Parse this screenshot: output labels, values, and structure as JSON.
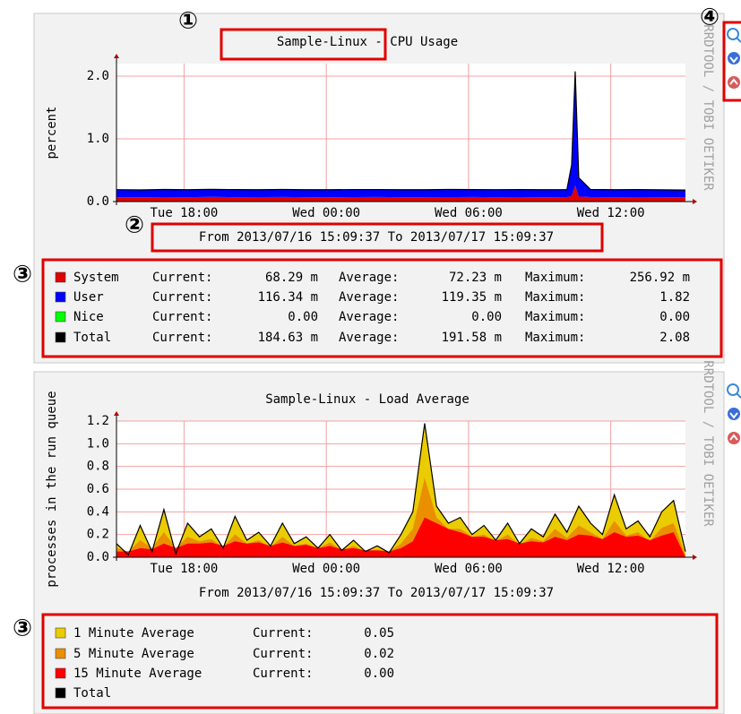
{
  "markers": [
    "①",
    "②",
    "③",
    "③",
    "④"
  ],
  "chart_data": [
    {
      "type": "area",
      "stacked": true,
      "title": "Sample-Linux - CPU Usage",
      "subtitle": "From 2013/07/16 15:09:37 To 2013/07/17 15:09:37",
      "y_label": "percent",
      "watermark": "RRDTOOL / TOBI OETIKER",
      "x": [
        0,
        1,
        2,
        3,
        4,
        5,
        6,
        7,
        8,
        9,
        10,
        11,
        12,
        13,
        14,
        15,
        16,
        17,
        18,
        19,
        19.2,
        19.35,
        19.5,
        20,
        21,
        22,
        23,
        24
      ],
      "xlim": [
        0,
        24
      ],
      "xticks": [
        {
          "value": 2.85,
          "label": "Tue 18:00"
        },
        {
          "value": 8.85,
          "label": "Wed 00:00"
        },
        {
          "value": 14.85,
          "label": "Wed 06:00"
        },
        {
          "value": 20.85,
          "label": "Wed 12:00"
        }
      ],
      "ylim": [
        0,
        2.2
      ],
      "yticks": [
        {
          "value": 0,
          "label": "0.0"
        },
        {
          "value": 1,
          "label": "1.0"
        },
        {
          "value": 2,
          "label": "2.0"
        }
      ],
      "grid": true,
      "stat_labels": [
        "Current:",
        "Average:",
        "Maximum:"
      ],
      "series": [
        {
          "name": "System",
          "color": "#e00000",
          "stats": [
            "68.29 m",
            "72.23 m",
            "256.92 m"
          ],
          "values": [
            0.07,
            0.068,
            0.072,
            0.07,
            0.075,
            0.069,
            0.071,
            0.073,
            0.07,
            0.068,
            0.072,
            0.074,
            0.07,
            0.069,
            0.071,
            0.073,
            0.07,
            0.072,
            0.068,
            0.071,
            0.09,
            0.257,
            0.08,
            0.072,
            0.07,
            0.071,
            0.069,
            0.068
          ]
        },
        {
          "name": "User",
          "color": "#0000ff",
          "stats": [
            "116.34 m",
            "119.35 m",
            "1.82"
          ],
          "values": [
            0.12,
            0.118,
            0.121,
            0.119,
            0.12,
            0.122,
            0.118,
            0.12,
            0.119,
            0.121,
            0.12,
            0.118,
            0.119,
            0.12,
            0.122,
            0.118,
            0.12,
            0.119,
            0.121,
            0.12,
            0.5,
            1.82,
            0.3,
            0.121,
            0.119,
            0.12,
            0.118,
            0.116
          ]
        },
        {
          "name": "Nice",
          "color": "#00ff00",
          "stats": [
            "0.00",
            "0.00",
            "0.00"
          ],
          "values": [
            0,
            0,
            0,
            0,
            0,
            0,
            0,
            0,
            0,
            0,
            0,
            0,
            0,
            0,
            0,
            0,
            0,
            0,
            0,
            0,
            0,
            0,
            0,
            0,
            0,
            0,
            0,
            0
          ]
        }
      ],
      "total": {
        "name": "Total",
        "color": "#000000",
        "stats": [
          "184.63 m",
          "191.58 m",
          "2.08"
        ]
      }
    },
    {
      "type": "area",
      "stacked": false,
      "title": "Sample-Linux - Load Average",
      "subtitle": "From 2013/07/16 15:09:37 To 2013/07/17 15:09:37",
      "y_label": "processes in the run queue",
      "watermark": "RRDTOOL / TOBI OETIKER",
      "x": [
        0,
        0.5,
        1,
        1.5,
        2,
        2.5,
        3,
        3.5,
        4,
        4.5,
        5,
        5.5,
        6,
        6.5,
        7,
        7.5,
        8,
        8.5,
        9,
        9.5,
        10,
        10.5,
        11,
        11.5,
        12,
        12.5,
        13,
        13.5,
        14,
        14.5,
        15,
        15.5,
        16,
        16.5,
        17,
        17.5,
        18,
        18.5,
        19,
        19.5,
        20,
        20.5,
        21,
        21.5,
        22,
        22.5,
        23,
        23.5,
        24
      ],
      "xlim": [
        0,
        24
      ],
      "xticks": [
        {
          "value": 2.85,
          "label": "Tue 18:00"
        },
        {
          "value": 8.85,
          "label": "Wed 00:00"
        },
        {
          "value": 14.85,
          "label": "Wed 06:00"
        },
        {
          "value": 20.85,
          "label": "Wed 12:00"
        }
      ],
      "ylim": [
        0,
        1.2
      ],
      "yticks": [
        {
          "value": 0,
          "label": "0.0"
        },
        {
          "value": 0.2,
          "label": "0.2"
        },
        {
          "value": 0.4,
          "label": "0.4"
        },
        {
          "value": 0.6,
          "label": "0.6"
        },
        {
          "value": 0.8,
          "label": "0.8"
        },
        {
          "value": 1,
          "label": "1.0"
        },
        {
          "value": 1.2,
          "label": "1.2"
        }
      ],
      "grid": true,
      "stat_labels": [
        "Current:"
      ],
      "series": [
        {
          "name": "1 Minute Average",
          "color": "#eacc00",
          "stats": [
            "0.05"
          ],
          "values": [
            0.12,
            0.02,
            0.28,
            0.05,
            0.42,
            0.03,
            0.3,
            0.18,
            0.25,
            0.08,
            0.36,
            0.15,
            0.22,
            0.1,
            0.3,
            0.12,
            0.18,
            0.08,
            0.2,
            0.06,
            0.15,
            0.05,
            0.1,
            0.04,
            0.2,
            0.4,
            1.18,
            0.45,
            0.3,
            0.35,
            0.2,
            0.28,
            0.15,
            0.3,
            0.12,
            0.25,
            0.18,
            0.38,
            0.22,
            0.45,
            0.3,
            0.2,
            0.55,
            0.25,
            0.32,
            0.18,
            0.4,
            0.5,
            0.05
          ]
        },
        {
          "name": "5 Minute Average",
          "color": "#ea8f00",
          "stats": [
            "0.02"
          ],
          "values": [
            0.08,
            0.05,
            0.15,
            0.08,
            0.22,
            0.08,
            0.18,
            0.14,
            0.16,
            0.09,
            0.2,
            0.12,
            0.15,
            0.09,
            0.18,
            0.1,
            0.12,
            0.08,
            0.13,
            0.06,
            0.1,
            0.05,
            0.07,
            0.05,
            0.12,
            0.25,
            0.7,
            0.35,
            0.25,
            0.25,
            0.18,
            0.2,
            0.14,
            0.2,
            0.11,
            0.17,
            0.14,
            0.25,
            0.17,
            0.28,
            0.22,
            0.16,
            0.32,
            0.19,
            0.22,
            0.14,
            0.26,
            0.3,
            0.02
          ]
        },
        {
          "name": "15 Minute Average",
          "color": "#ff0000",
          "stats": [
            "0.00"
          ],
          "values": [
            0.05,
            0.05,
            0.08,
            0.07,
            0.12,
            0.08,
            0.12,
            0.12,
            0.13,
            0.1,
            0.14,
            0.12,
            0.13,
            0.1,
            0.13,
            0.1,
            0.11,
            0.08,
            0.1,
            0.07,
            0.08,
            0.06,
            0.06,
            0.05,
            0.08,
            0.14,
            0.35,
            0.3,
            0.25,
            0.22,
            0.18,
            0.18,
            0.15,
            0.16,
            0.12,
            0.14,
            0.13,
            0.18,
            0.15,
            0.2,
            0.19,
            0.16,
            0.22,
            0.18,
            0.19,
            0.15,
            0.19,
            0.22,
            0.0
          ]
        }
      ],
      "total": {
        "name": "Total",
        "color": "#000000"
      }
    }
  ]
}
